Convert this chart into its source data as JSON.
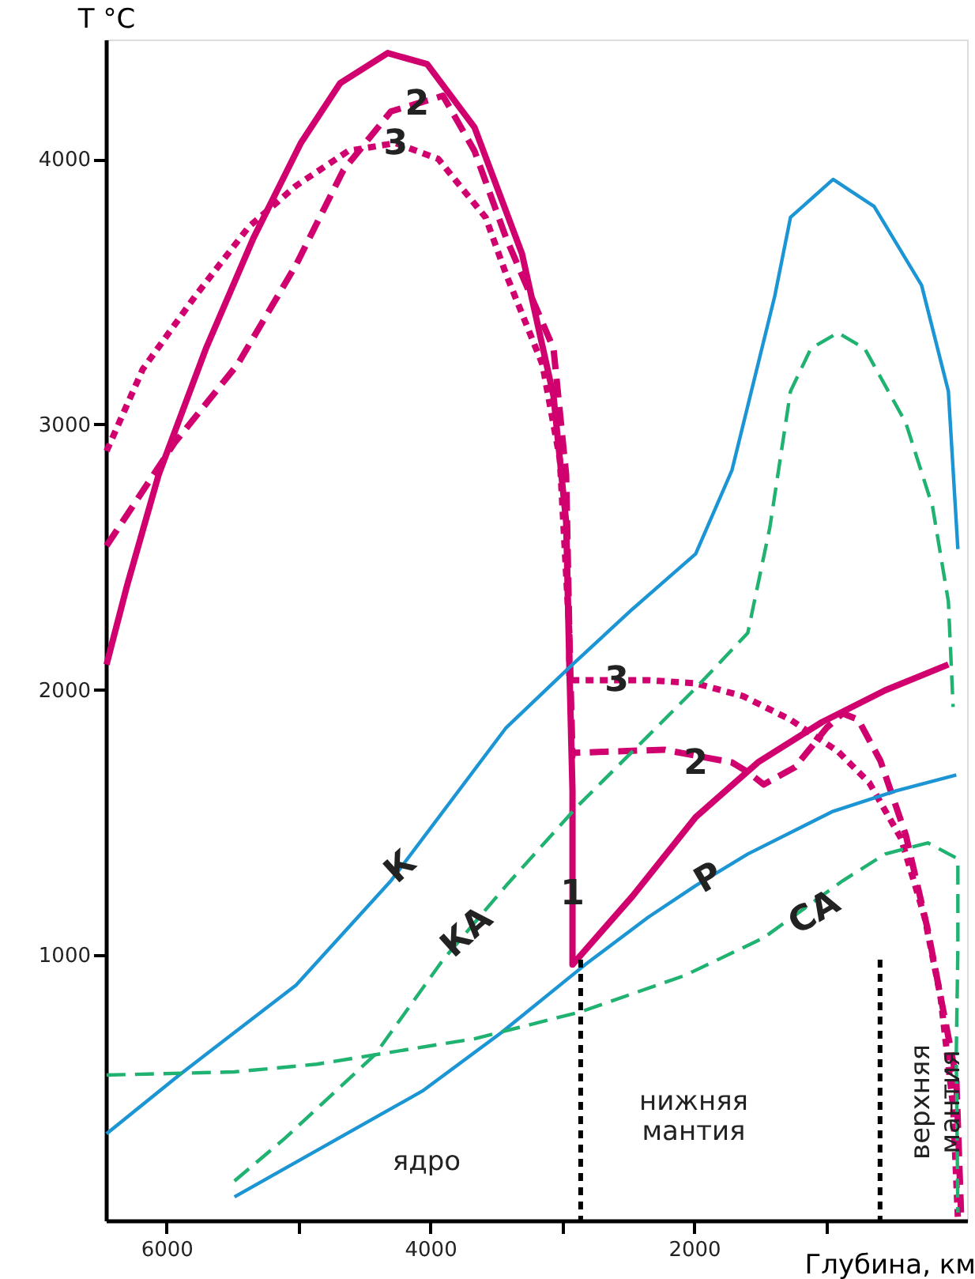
{
  "chart_data": {
    "type": "line",
    "xlabel": "Глубина, км",
    "ylabel": "T °C",
    "xlim": [
      6460,
      -70
    ],
    "ylim": [
      0,
      4450
    ],
    "xticks": [
      6000,
      {
        "value": 5000,
        "label": null
      },
      4000,
      {
        "value": 3000,
        "label": null
      },
      2000,
      {
        "value": 1000,
        "label": null
      }
    ],
    "yticks": [
      1000,
      2000,
      3000,
      4000
    ],
    "grid": false,
    "marker": "none",
    "series": [
      {
        "color": "#d1006f",
        "line_style": "solid",
        "x": [
          6455,
          6299,
          6060,
          5701,
          5341,
          4982,
          4683,
          4323,
          4024,
          3665,
          3305,
          3066,
          2970,
          2946,
          2922,
          2922,
          2467,
          1988,
          1509,
          1030,
          551,
          72
        ],
        "values": [
          2095,
          2393,
          2810,
          3286,
          3702,
          4060,
          4286,
          4399,
          4357,
          4119,
          3643,
          3107,
          2631,
          2095,
          1619,
          964,
          1222,
          1520,
          1729,
          1878,
          1998,
          2095
        ]
      },
      {
        "color": "#d1006f",
        "line_style": "dashed",
        "x": [
          6455,
          5940,
          5461,
          5018,
          4659,
          4299,
          3904,
          3665,
          3425,
          3066,
          2970,
          2946,
          2922,
          2922,
          2228,
          1713,
          1593,
          1473,
          1234,
          994,
          874,
          755,
          587,
          395,
          228,
          12,
          -24
        ],
        "values": [
          2542,
          2930,
          3226,
          3601,
          3958,
          4179,
          4238,
          4030,
          3702,
          3286,
          2810,
          2214,
          1750,
          1762,
          1774,
          1726,
          1690,
          1643,
          1708,
          1857,
          1911,
          1887,
          1732,
          1453,
          1095,
          536,
          30
        ]
      },
      {
        "color": "#d1006f",
        "line_style": "dotted",
        "x": [
          6455,
          6180,
          5784,
          5377,
          5018,
          4623,
          4263,
          3940,
          3581,
          3425,
          3150,
          3018,
          2946,
          2946,
          2886,
          2347,
          1988,
          1629,
          1269,
          910,
          671,
          431,
          252,
          132,
          36,
          0
        ],
        "values": [
          2899,
          3208,
          3482,
          3744,
          3899,
          4030,
          4060,
          4000,
          3780,
          3565,
          3226,
          2869,
          2214,
          2036,
          2036,
          2036,
          2024,
          1976,
          1887,
          1768,
          1649,
          1440,
          1143,
          845,
          429,
          12
        ]
      },
      {
        "color": "#1b95d3",
        "line_style": "solid",
        "x": [
          6455,
          5904,
          5018,
          4299,
          3425,
          2922,
          2467,
          1988,
          1713,
          1389,
          1269,
          946,
          635,
          275,
          72,
          0
        ],
        "values": [
          327,
          548,
          887,
          1280,
          1857,
          2095,
          2304,
          2512,
          2827,
          3482,
          3780,
          3923,
          3821,
          3524,
          3125,
          2530
        ]
      },
      {
        "color": "#1fb270",
        "line_style": "dashed",
        "x": [
          5485,
          5102,
          4419,
          3904,
          3425,
          2886,
          2347,
          1988,
          1593,
          1425,
          1269,
          1114,
          910,
          707,
          395,
          192,
          72,
          36
        ],
        "values": [
          149,
          310,
          625,
          982,
          1262,
          1560,
          1827,
          2006,
          2214,
          2613,
          3125,
          3286,
          3345,
          3286,
          3006,
          2690,
          2333,
          1935
        ]
      },
      {
        "color": "#1b95d3",
        "line_style": "solid",
        "x": [
          5485,
          4060,
          3461,
          2826,
          2347,
          1988,
          1593,
          946,
          467,
          12
        ],
        "values": [
          89,
          488,
          708,
          964,
          1143,
          1262,
          1381,
          1542,
          1619,
          1679
        ]
      },
      {
        "color": "#1fb270",
        "line_style": "dashed",
        "x": [
          6455,
          5485,
          4862,
          3665,
          2862,
          2072,
          1473,
          874,
          551,
          228,
          0,
          0,
          12,
          0
        ],
        "values": [
          548,
          560,
          589,
          685,
          786,
          923,
          1065,
          1280,
          1381,
          1423,
          1363,
          1024,
          625,
          30
        ]
      }
    ],
    "ref_lines": [
      {
        "axis": "x",
        "value": 2860,
        "line_style": "dotted",
        "color": "#000000"
      },
      {
        "axis": "x",
        "value": 590,
        "line_style": "dotted",
        "color": "#000000"
      }
    ],
    "annotations": [
      {
        "text": "2",
        "x": 4100,
        "y": 4209
      },
      {
        "text": "3",
        "x": 4263,
        "y": 4060
      },
      {
        "text": "3",
        "x": 2587,
        "y": 2036
      },
      {
        "text": "2",
        "x": 1988,
        "y": 1726
      },
      {
        "text": "1",
        "x": 2922,
        "y": 1232
      },
      {
        "text": "К",
        "x": 4228,
        "y": 1333
      },
      {
        "text": "КА",
        "x": 3725,
        "y": 1087
      },
      {
        "text": "Р",
        "x": 1892,
        "y": 1292
      },
      {
        "text": "СА",
        "x": 1090,
        "y": 1161
      },
      "ядро",
      "нижняя\nмантия",
      "верхняя\nмантия"
    ]
  }
}
